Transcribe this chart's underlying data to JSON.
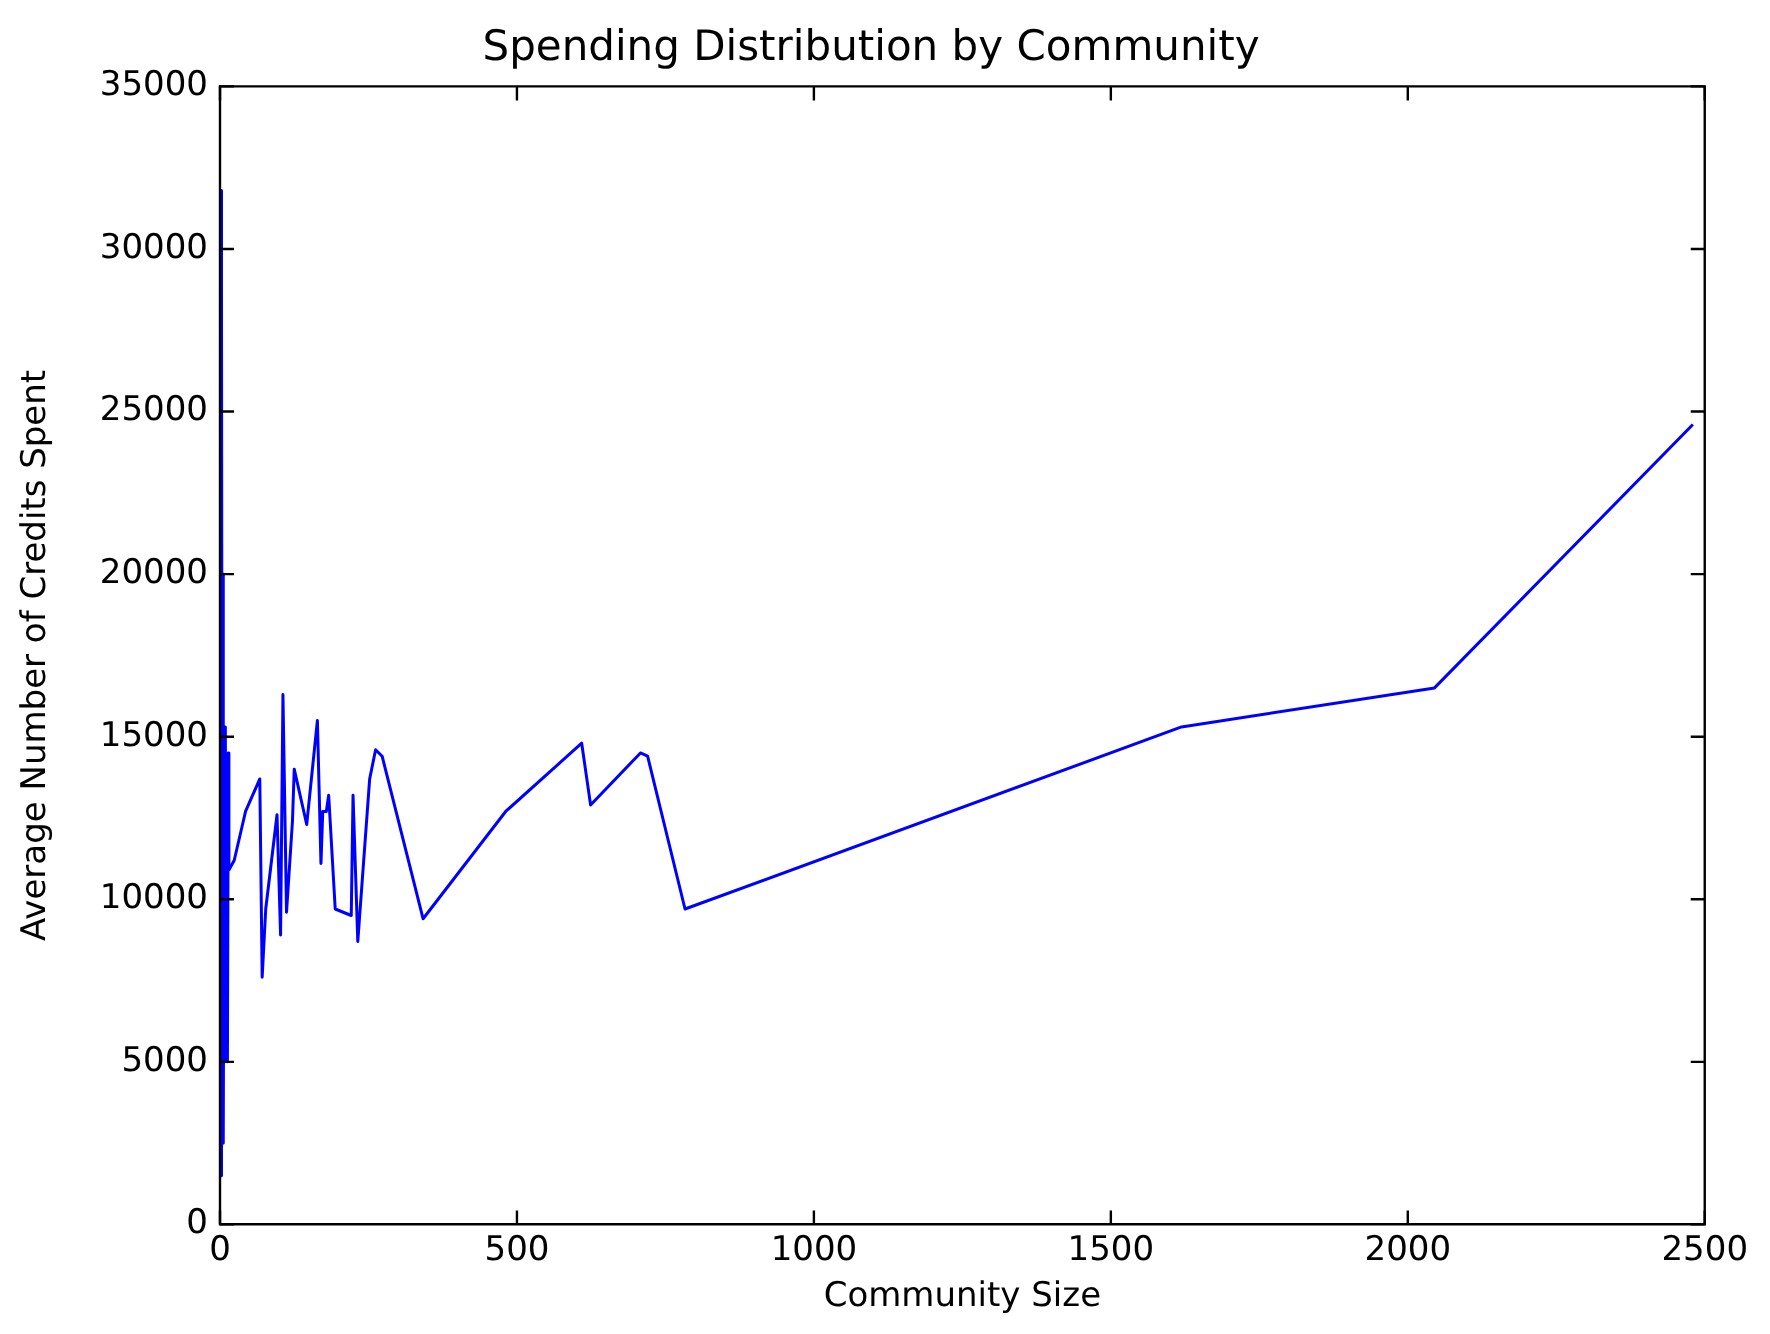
{
  "chart_data": {
    "type": "line",
    "title": "Spending Distribution by Community",
    "xlabel": "Community Size",
    "ylabel": "Average Number of Credits Spent",
    "series": [
      {
        "color": "#0000ff",
        "x": [
          1,
          2,
          3,
          4,
          5,
          6,
          7,
          8,
          9,
          10,
          11,
          12,
          13,
          14,
          15,
          24,
          43,
          67,
          71,
          77,
          96,
          102,
          106,
          112,
          122,
          125,
          146,
          164,
          170,
          173,
          179,
          183,
          194,
          221,
          224,
          232,
          252,
          262,
          273,
          342,
          481,
          609,
          624,
          708,
          720,
          783,
          1619,
          2045,
          2480
        ],
        "values": [
          31800,
          1500,
          28900,
          2600,
          20000,
          2500,
          14000,
          15300,
          5000,
          15000,
          6000,
          12000,
          5000,
          14500,
          10900,
          11200,
          12700,
          13700,
          7600,
          9700,
          12600,
          8900,
          16300,
          9600,
          12400,
          14000,
          12300,
          15500,
          11100,
          12700,
          12700,
          13200,
          9700,
          9500,
          13200,
          8700,
          13700,
          14600,
          14400,
          9400,
          12700,
          14800,
          12900,
          14500,
          14400,
          9700,
          15300,
          16500,
          24600
        ]
      }
    ],
    "xlim": [
      0,
      2500
    ],
    "xticks": [
      0,
      500,
      1000,
      1500,
      2000,
      2500
    ],
    "ylim": [
      0,
      35000
    ],
    "yticks": [
      0,
      5000,
      10000,
      15000,
      20000,
      25000,
      30000,
      35000
    ],
    "grid": false,
    "legend": false,
    "marker": "none",
    "line_style": "solid"
  }
}
